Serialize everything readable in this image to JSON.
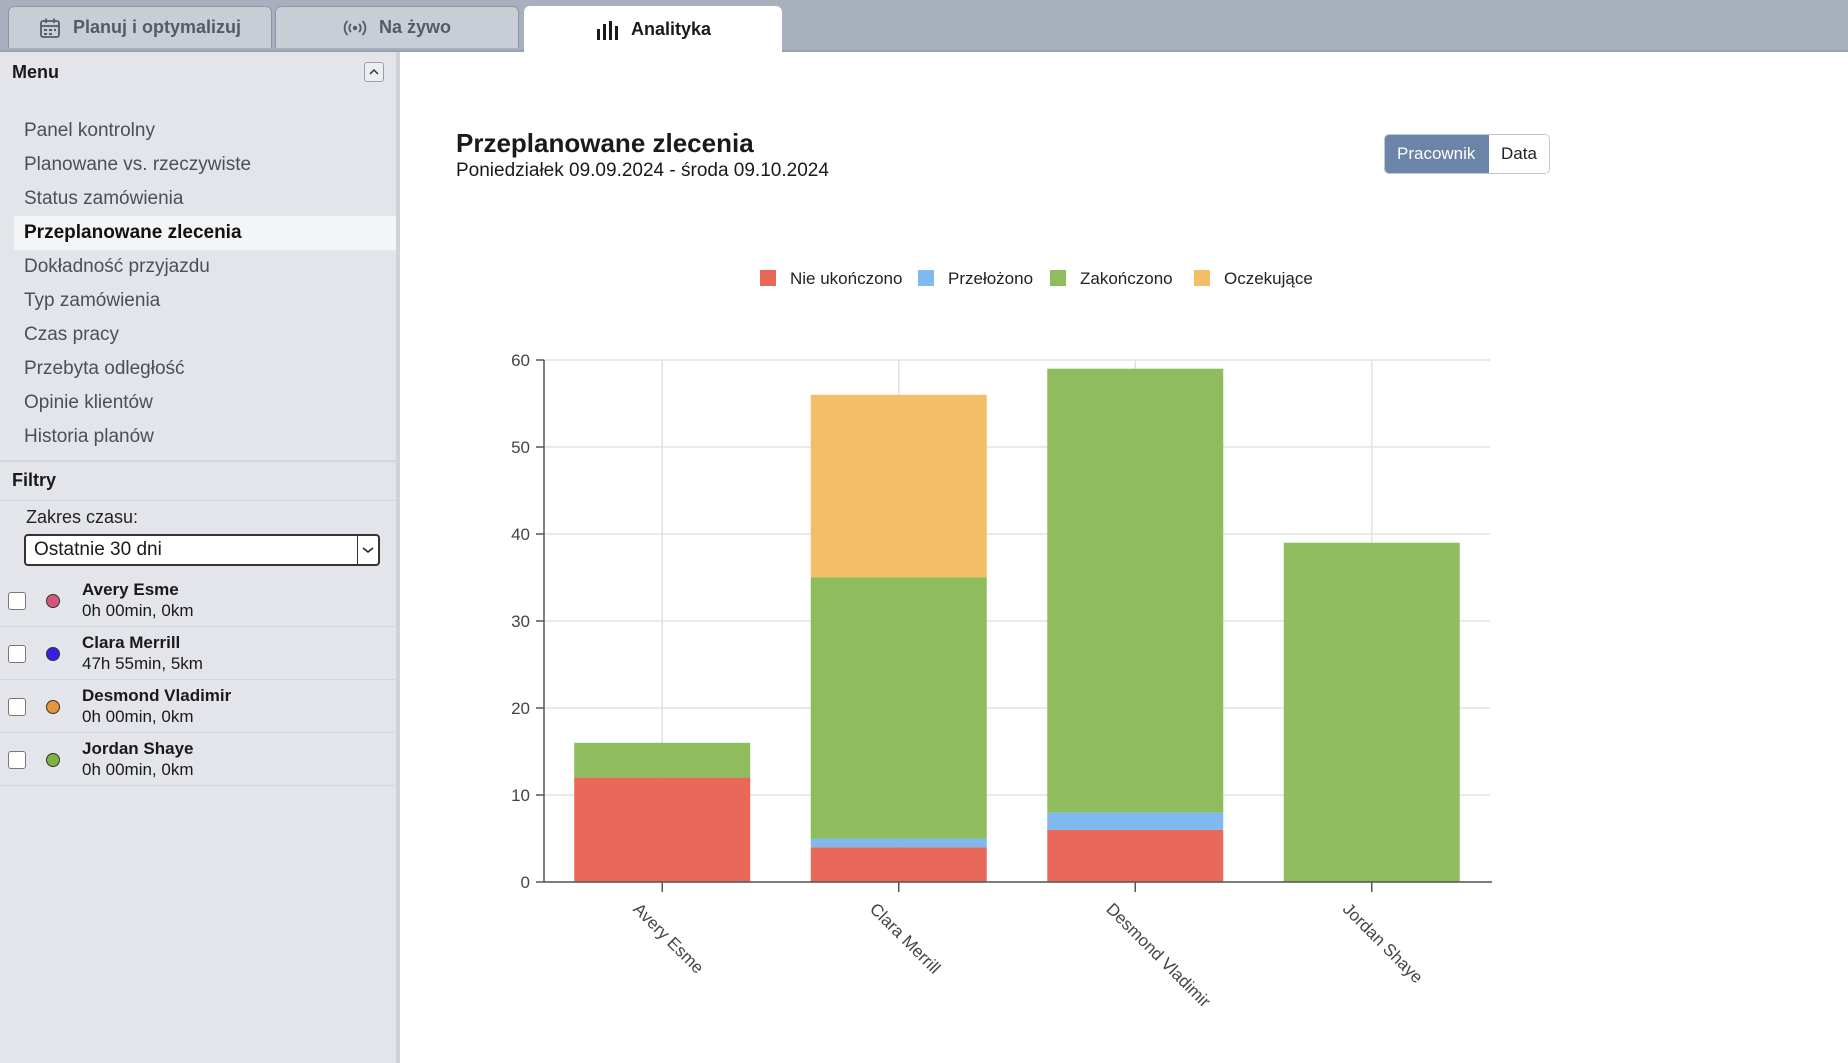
{
  "tabs": [
    {
      "label": "Planuj i optymalizuj",
      "icon": "calendar-icon"
    },
    {
      "label": "Na żywo",
      "icon": "broadcast-icon"
    },
    {
      "label": "Analityka",
      "icon": "bar-chart-icon"
    }
  ],
  "sidebar": {
    "menu_title": "Menu",
    "items": [
      {
        "label": "Panel kontrolny"
      },
      {
        "label": "Planowane vs. rzeczywiste"
      },
      {
        "label": "Status zamówienia"
      },
      {
        "label": "Przeplanowane zlecenia"
      },
      {
        "label": "Dokładność przyjazdu"
      },
      {
        "label": "Typ zamówienia"
      },
      {
        "label": "Czas pracy"
      },
      {
        "label": "Przebyta odległość"
      },
      {
        "label": "Opinie klientów"
      },
      {
        "label": "Historia planów"
      }
    ],
    "active_item": "Przeplanowane zlecenia",
    "filters_title": "Filtry",
    "range_label": "Zakres czasu:",
    "range_value": "Ostatnie 30 dni",
    "employees": [
      {
        "name": "Avery Esme",
        "meta": "0h 00min, 0km",
        "color": "#d0587a"
      },
      {
        "name": "Clara Merrill",
        "meta": "47h 55min, 5km",
        "color": "#3a1fe0"
      },
      {
        "name": "Desmond Vladimir",
        "meta": "0h 00min, 0km",
        "color": "#e4973a"
      },
      {
        "name": "Jordan Shaye",
        "meta": "0h 00min, 0km",
        "color": "#7db244"
      }
    ]
  },
  "main": {
    "title": "Przeplanowane zlecenia",
    "subtitle": "Poniedziałek 09.09.2024 - środa 09.10.2024",
    "toggle": {
      "active": "Pracownik",
      "inactive": "Data"
    }
  },
  "chart_data": {
    "type": "bar",
    "stacked": true,
    "categories": [
      "Avery Esme",
      "Clara Merrill",
      "Desmond Vladimir",
      "Jordan Shaye"
    ],
    "series": [
      {
        "name": "Nie ukończono",
        "color": "#e8685a",
        "values": [
          12,
          4,
          6,
          0
        ]
      },
      {
        "name": "Przełożono",
        "color": "#7fb9ee",
        "values": [
          0,
          1,
          2,
          0
        ]
      },
      {
        "name": "Zakończono",
        "color": "#8fbd5e",
        "values": [
          4,
          30,
          51,
          39
        ]
      },
      {
        "name": "Oczekujące",
        "color": "#f2bf66",
        "values": [
          0,
          21,
          0,
          0
        ]
      }
    ],
    "ylim": [
      0,
      60
    ],
    "yticks": [
      "0",
      "10",
      "20",
      "30",
      "40",
      "50",
      "60"
    ],
    "legend_position": "top-center",
    "grid": true
  }
}
